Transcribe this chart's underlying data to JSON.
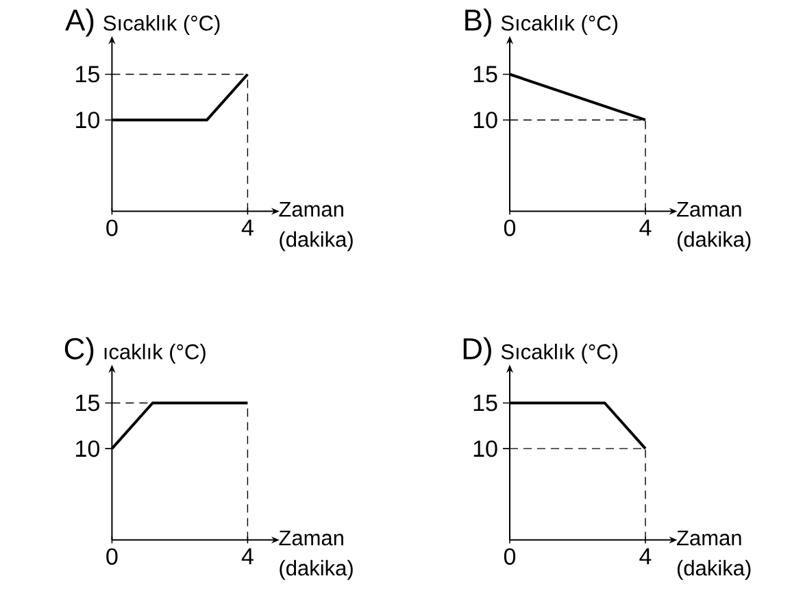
{
  "chart_data": [
    {
      "type": "line",
      "title": "A)",
      "ylabel": "Sıcaklık (°C)",
      "xlabel": "Zaman (dakika)",
      "x": [
        0,
        2.8,
        4
      ],
      "values": [
        10,
        10,
        15
      ],
      "color": "#000000",
      "xlim": [
        0,
        4.7
      ],
      "ylim": [
        0,
        18.3
      ],
      "xticks": [
        0,
        4
      ],
      "yticks": [
        10,
        15
      ],
      "ref_lines": [
        {
          "axis": "y",
          "value": 15,
          "line_style": "dashed"
        },
        {
          "axis": "x",
          "value": 4,
          "line_style": "dashed"
        }
      ]
    },
    {
      "type": "line",
      "title": "B)",
      "ylabel": "Sıcaklık (°C)",
      "xlabel": "Zaman (dakika)",
      "x": [
        0,
        4
      ],
      "values": [
        15,
        10
      ],
      "color": "#000000",
      "xlim": [
        0,
        4.7
      ],
      "ylim": [
        0,
        18.3
      ],
      "xticks": [
        0,
        4
      ],
      "yticks": [
        10,
        15
      ],
      "ref_lines": [
        {
          "axis": "y",
          "value": 10,
          "line_style": "dashed"
        },
        {
          "axis": "x",
          "value": 4,
          "line_style": "dashed"
        }
      ]
    },
    {
      "type": "line",
      "title": "C)",
      "ylabel": "ıcaklık (°C)",
      "xlabel": "Zaman (dakika)",
      "x": [
        0,
        1.2,
        4
      ],
      "values": [
        10,
        15,
        15
      ],
      "color": "#000000",
      "xlim": [
        0,
        4.7
      ],
      "ylim": [
        0,
        18.3
      ],
      "xticks": [
        0,
        4
      ],
      "yticks": [
        10,
        15
      ],
      "ref_lines": [
        {
          "axis": "y",
          "value": 15,
          "line_style": "dashed"
        },
        {
          "axis": "x",
          "value": 4,
          "line_style": "dashed"
        }
      ]
    },
    {
      "type": "line",
      "title": "D)",
      "ylabel": "Sıcaklık (°C)",
      "xlabel": "Zaman (dakika)",
      "x": [
        0,
        2.8,
        4
      ],
      "values": [
        15,
        15,
        10
      ],
      "color": "#000000",
      "xlim": [
        0,
        4.7
      ],
      "ylim": [
        0,
        18.3
      ],
      "xticks": [
        0,
        4
      ],
      "yticks": [
        10,
        15
      ],
      "ref_lines": [
        {
          "axis": "y",
          "value": 10,
          "line_style": "dashed"
        },
        {
          "axis": "x",
          "value": 4,
          "line_style": "dashed"
        }
      ]
    }
  ]
}
